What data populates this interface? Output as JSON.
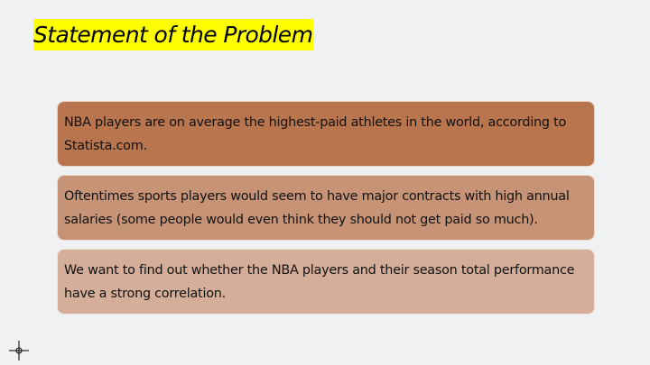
{
  "slide": {
    "title": "Statement of the Problem",
    "title_highlight_color": "#ffff00",
    "background_color": "#f0f1f3"
  },
  "boxes": [
    {
      "text": "NBA players are on average the highest-paid athletes in the world, according to Statista.com.",
      "color": "#b9754d"
    },
    {
      "text": "Oftentimes sports players would seem to have major contracts with high annual salaries (some people would even think they should not get paid so much).",
      "color": "#c79377"
    },
    {
      "text": "We want to find out whether the NBA players and their season total performance have a strong correlation.",
      "color": "#d4ae98"
    }
  ],
  "cursor": {
    "icon": "crosshair-cursor-icon"
  }
}
